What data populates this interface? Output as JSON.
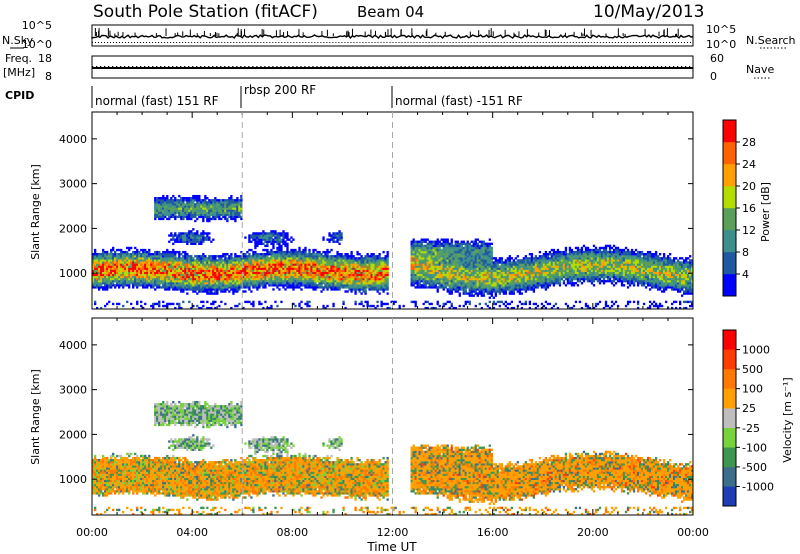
{
  "header": {
    "title": "South Pole Station (fitACF)",
    "beam": "Beam 04",
    "date": "10/May/2013"
  },
  "top_panels": {
    "nsky": {
      "label": "N.Sky",
      "ticks": [
        "10^5",
        "10^0"
      ]
    },
    "nsearch": {
      "label": "N.Search",
      "ticks": [
        "10^5",
        "10^0"
      ]
    },
    "freq": {
      "label_line1": "Freq.",
      "label_line2": "[MHz]",
      "ticks": [
        "18",
        "8"
      ]
    },
    "nave": {
      "label": "Nave",
      "ticks": [
        "60",
        "0"
      ]
    },
    "cpid": {
      "label": "CPID",
      "segments": [
        {
          "label": "normal (fast) 151 RF",
          "start_hour": 0,
          "end_hour": 6
        },
        {
          "label": "rbsp 200 RF",
          "start_hour": 6,
          "end_hour": 12
        },
        {
          "label": "normal (fast) -151 RF",
          "start_hour": 12,
          "end_hour": 24
        }
      ]
    }
  },
  "chart_data": [
    {
      "type": "heatmap",
      "panel": "power",
      "ylabel": "Slant Range [km]",
      "ylim": [
        200,
        4600
      ],
      "yticks": [
        "1000",
        "2000",
        "3000",
        "4000"
      ],
      "colorbar": {
        "label": "Power [dB]",
        "tick_labels": [
          "4",
          "8",
          "12",
          "16",
          "20",
          "24",
          "28"
        ],
        "colors": [
          "#0000ff",
          "#1e5aa0",
          "#3c8f8c",
          "#5aa05a",
          "#b4dc00",
          "#ffa000",
          "#ff6400",
          "#ff0000"
        ]
      },
      "features": [
        {
          "t0": 0.0,
          "t1": 11.8,
          "r_center": 1050,
          "r_width": 700,
          "peak_dB": 30
        },
        {
          "t0": 2.5,
          "t1": 6.0,
          "r_center": 2450,
          "r_width": 500,
          "peak_dB": 16
        },
        {
          "t0": 12.7,
          "t1": 24.0,
          "r_center": 1050,
          "r_width": 700,
          "peak_dB": 22
        }
      ]
    },
    {
      "type": "heatmap",
      "panel": "velocity",
      "xlabel": "Time UT",
      "ylabel": "Slant Range [km]",
      "ylim": [
        200,
        4600
      ],
      "yticks": [
        "1000",
        "2000",
        "3000",
        "4000"
      ],
      "xticks": [
        "00:00",
        "04:00",
        "08:00",
        "12:00",
        "16:00",
        "20:00",
        "00:00"
      ],
      "xlim_hours": [
        0,
        24
      ],
      "colorbar": {
        "label": "Velocity [m s⁻¹]",
        "tick_labels": [
          "1000",
          "500",
          "100",
          "25",
          "-25",
          "-100",
          "-500",
          "-1000"
        ],
        "colors": [
          "#1e3cb4",
          "#3c6e8c",
          "#3c9650",
          "#78d23c",
          "#bebebe",
          "#ffa000",
          "#ff7800",
          "#ff3c00",
          "#ff0000"
        ]
      }
    }
  ]
}
